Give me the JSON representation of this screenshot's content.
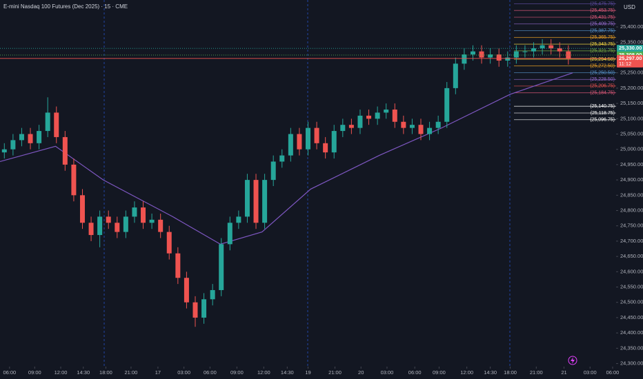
{
  "chart_data": {
    "type": "candlestick",
    "title": "E-mini Nasdaq 100 Futures (Dec 2025) · 15 · CME",
    "currency": "USD",
    "countdown": "11:12",
    "up_color": "#26a69a",
    "down_color": "#ef5350",
    "ylim": [
      24290,
      25488
    ],
    "yticks": [
      {
        "value": 24300,
        "label": "24,300.00"
      },
      {
        "value": 24350,
        "label": "24,350.00"
      },
      {
        "value": 24400,
        "label": "24,400.00"
      },
      {
        "value": 24450,
        "label": "24,450.00"
      },
      {
        "value": 24500,
        "label": "24,500.00"
      },
      {
        "value": 24550,
        "label": "24,550.00"
      },
      {
        "value": 24600,
        "label": "24,600.00"
      },
      {
        "value": 24650,
        "label": "24,650.00"
      },
      {
        "value": 24700,
        "label": "24,700.00"
      },
      {
        "value": 24750,
        "label": "24,750.00"
      },
      {
        "value": 24800,
        "label": "24,800.00"
      },
      {
        "value": 24850,
        "label": "24,850.00"
      },
      {
        "value": 24900,
        "label": "24,900.00"
      },
      {
        "value": 24950,
        "label": "24,950.00"
      },
      {
        "value": 25000,
        "label": "25,000.00"
      },
      {
        "value": 25050,
        "label": "25,050.00"
      },
      {
        "value": 25100,
        "label": "25,100.00"
      },
      {
        "value": 25150,
        "label": "25,150.00"
      },
      {
        "value": 25200,
        "label": "25,200.00"
      },
      {
        "value": 25250,
        "label": "25,250.00"
      },
      {
        "value": 25300,
        "label": "25,300.00"
      },
      {
        "value": 25350,
        "label": "25,350.00"
      },
      {
        "value": 25400,
        "label": "25,400.00"
      }
    ],
    "xlim": [
      0,
      71
    ],
    "xticks": [
      {
        "value": 1.1,
        "label": "06:00"
      },
      {
        "value": 4,
        "label": "09:00"
      },
      {
        "value": 7,
        "label": "12:00"
      },
      {
        "value": 9.6,
        "label": "14:30"
      },
      {
        "value": 12.2,
        "label": "18:00"
      },
      {
        "value": 15.1,
        "label": "21:00"
      },
      {
        "value": 18.2,
        "label": "17"
      },
      {
        "value": 21.2,
        "label": "03:00"
      },
      {
        "value": 24.2,
        "label": "06:00"
      },
      {
        "value": 27.3,
        "label": "09:00"
      },
      {
        "value": 30.4,
        "label": "12:00"
      },
      {
        "value": 33.1,
        "label": "14:30"
      },
      {
        "value": 35.5,
        "label": "19"
      },
      {
        "value": 38.6,
        "label": "21:00"
      },
      {
        "value": 41.6,
        "label": "20"
      },
      {
        "value": 44.6,
        "label": "03:00"
      },
      {
        "value": 47.8,
        "label": "06:00"
      },
      {
        "value": 50.6,
        "label": "09:00"
      },
      {
        "value": 53.8,
        "label": "12:00"
      },
      {
        "value": 56.5,
        "label": "14:30"
      },
      {
        "value": 58.8,
        "label": "18:00"
      },
      {
        "value": 61.8,
        "label": "21:00"
      },
      {
        "value": 65,
        "label": "21"
      },
      {
        "value": 68,
        "label": "03:00"
      },
      {
        "value": 70.6,
        "label": "06:00"
      }
    ],
    "open": [
      24990,
      25000,
      25030,
      25050,
      25020,
      25060,
      25120,
      25040,
      24950,
      24850,
      24760,
      24720,
      24780,
      24760,
      24730,
      24780,
      24810,
      24760,
      24770,
      24730,
      24660,
      24580,
      24500,
      24450,
      24510,
      24540,
      24690,
      24760,
      24780,
      24900,
      24760,
      24900,
      24960,
      24980,
      25050,
      25000,
      25070,
      25020,
      24990,
      25060,
      25080,
      25070,
      25110,
      25100,
      25120,
      25130,
      25090,
      25070,
      25080,
      25050,
      25070,
      25090,
      25200,
      25280,
      25310,
      25320,
      25300,
      25310,
      25290,
      25300,
      25320,
      25320,
      25330,
      25340,
      25330,
      25320
    ],
    "high": [
      25020,
      25050,
      25070,
      25070,
      25080,
      25170,
      25140,
      25060,
      24970,
      24870,
      24780,
      24800,
      24800,
      24780,
      24800,
      24830,
      24830,
      24790,
      24790,
      24750,
      24680,
      24600,
      24520,
      24530,
      24560,
      24710,
      24780,
      24800,
      24920,
      24920,
      24920,
      24980,
      25000,
      25070,
      25070,
      25090,
      25090,
      25040,
      25080,
      25100,
      25100,
      25130,
      25130,
      25140,
      25150,
      25150,
      25110,
      25100,
      25100,
      25090,
      25110,
      25220,
      25300,
      25330,
      25340,
      25340,
      25330,
      25330,
      25320,
      25340,
      25340,
      25350,
      25360,
      25360,
      25350,
      25340
    ],
    "low": [
      24970,
      24980,
      25010,
      25000,
      25000,
      25040,
      25020,
      24930,
      24830,
      24740,
      24700,
      24680,
      24740,
      24710,
      24710,
      24760,
      24740,
      24740,
      24710,
      24640,
      24560,
      24480,
      24420,
      24430,
      24490,
      24520,
      24670,
      24740,
      24760,
      24740,
      24740,
      24880,
      24940,
      24960,
      24980,
      24980,
      25000,
      24970,
      24970,
      25040,
      25050,
      25050,
      25080,
      25080,
      25100,
      25070,
      25050,
      25050,
      25030,
      25030,
      25050,
      25070,
      25180,
      25260,
      25290,
      25280,
      25280,
      25270,
      25270,
      25280,
      25300,
      25300,
      25310,
      25310,
      25300,
      25277
    ],
    "close": [
      25000,
      25030,
      25050,
      25020,
      25060,
      25120,
      25040,
      24950,
      24850,
      24760,
      24720,
      24780,
      24760,
      24730,
      24780,
      24810,
      24760,
      24770,
      24730,
      24660,
      24580,
      24500,
      24450,
      24510,
      24540,
      24690,
      24760,
      24780,
      24900,
      24760,
      24900,
      24960,
      24980,
      25050,
      25000,
      25070,
      25020,
      24990,
      25060,
      25080,
      25070,
      25110,
      25100,
      25120,
      25130,
      25090,
      25070,
      25080,
      25050,
      25070,
      25090,
      25200,
      25280,
      25310,
      25320,
      25300,
      25310,
      25290,
      25300,
      25320,
      25320,
      25330,
      25340,
      25330,
      25320,
      25297
    ],
    "overlays": [
      {
        "color": "#7e57c2",
        "x": [
          0,
          6.4,
          11.9,
          19.9,
          25.4,
          30.2,
          35.8,
          43.7,
          50.9,
          58.8,
          66
        ],
        "values": [
          24960,
          25010,
          24900,
          24780,
          24690,
          24730,
          24870,
          24980,
          25070,
          25180,
          25250
        ]
      }
    ],
    "levels": [
      {
        "value": 25475.75,
        "label": "(25,475.75)",
        "color": "#5c4a9e"
      },
      {
        "value": 25453.75,
        "label": "(25,453.75)",
        "color": "#e05a7a"
      },
      {
        "value": 25431.75,
        "label": "(25,431.75)",
        "color": "#e05a7a"
      },
      {
        "value": 25409.75,
        "label": "(25,409.75)",
        "color": "#9c6fd6"
      },
      {
        "value": 25387.75,
        "label": "(25,387.75)",
        "color": "#5b9bd5"
      },
      {
        "value": 25365.75,
        "label": "(25,365.75)",
        "color": "#f5a623"
      },
      {
        "value": 25343.75,
        "label": "(25,343.75)",
        "color": "#f5d742"
      },
      {
        "value": 25321.75,
        "label": "(25,321.75)",
        "color": "#7cb342"
      },
      {
        "value": 25294.5,
        "label": "(25,294.50)",
        "color": "#f5d742"
      },
      {
        "value": 25272.5,
        "label": "(25,272.50)",
        "color": "#f5a623"
      },
      {
        "value": 25250.5,
        "label": "(25,250.50)",
        "color": "#5b9bd5"
      },
      {
        "value": 25228.5,
        "label": "(25,228.50)",
        "color": "#9c6fd6"
      },
      {
        "value": 25206.75,
        "label": "(25,206.75)",
        "color": "#ef5350"
      },
      {
        "value": 25184.75,
        "label": "(25,184.75)",
        "color": "#e05a7a"
      },
      {
        "value": 25140.75,
        "label": "(25,140.75)",
        "color": "#ffffff"
      },
      {
        "value": 25118.75,
        "label": "(25,118.75)",
        "color": "#ffffff"
      },
      {
        "value": 25096.75,
        "label": "(25,096.75)",
        "color": "#ffffff"
      }
    ],
    "price_labels": [
      {
        "value": 25330,
        "label": "25,330.00",
        "color": "#26a69a",
        "dotted": true
      },
      {
        "value": 25308,
        "label": "25,308.00",
        "color": "#4caf50",
        "dotted": true
      },
      {
        "value": 25297,
        "label": "25,297.00",
        "color": "#ef5350",
        "dotted": false
      }
    ]
  }
}
